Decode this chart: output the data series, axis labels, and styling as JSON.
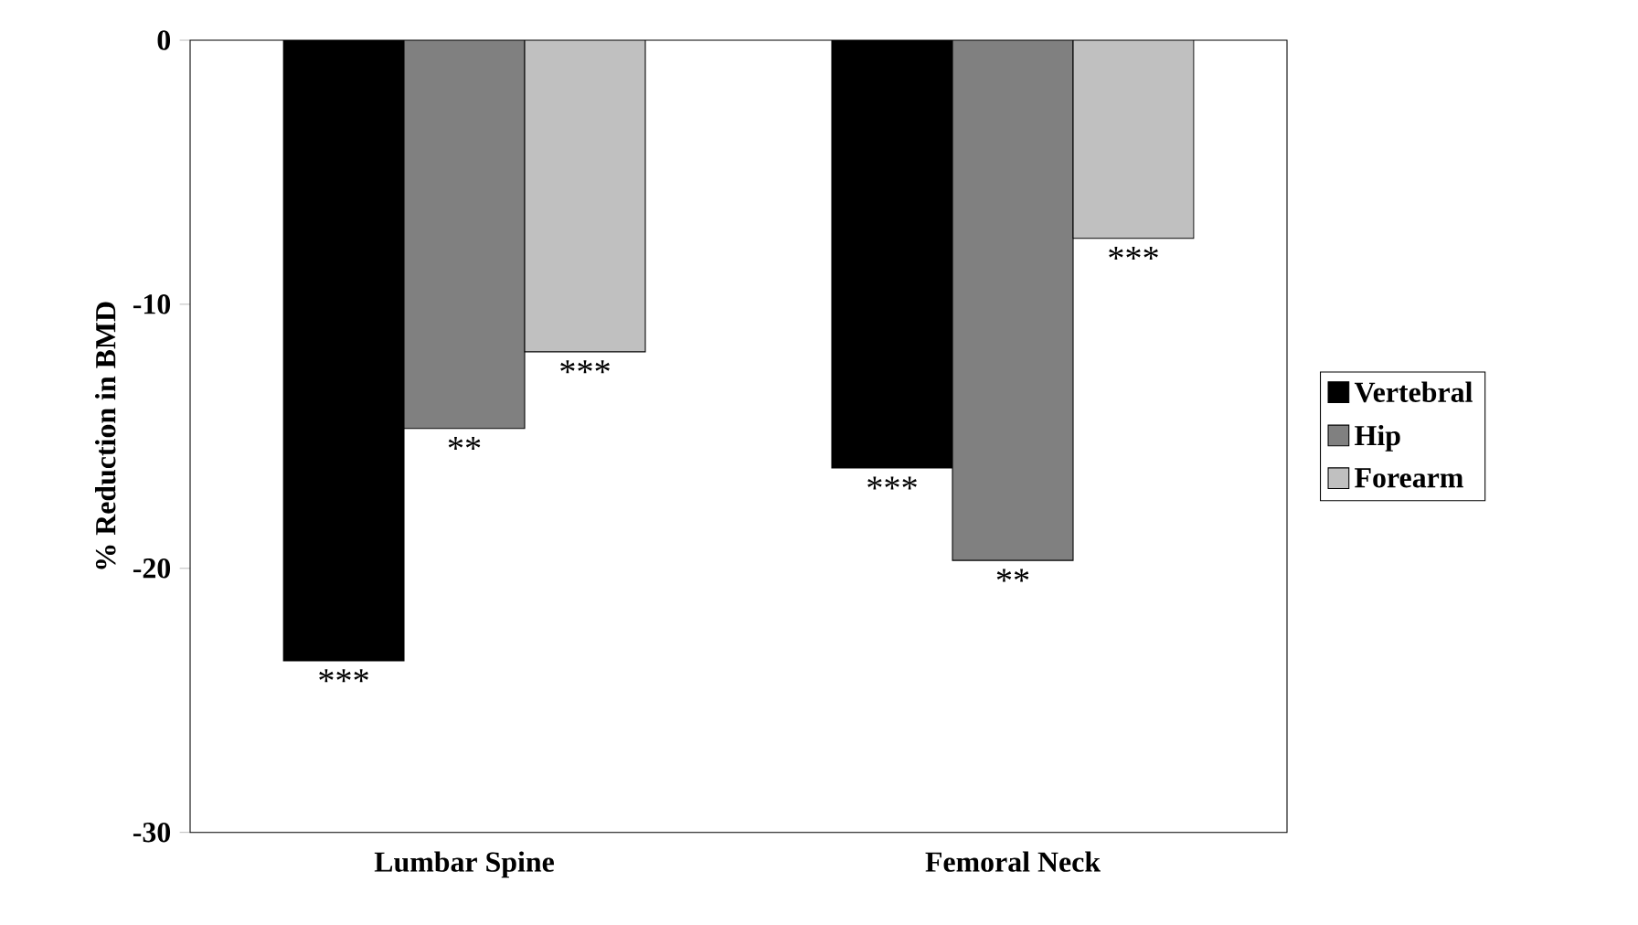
{
  "chart_data": {
    "type": "bar",
    "ylabel": "% Reduction in BMD",
    "categories": [
      "Lumbar Spine",
      "Femoral Neck"
    ],
    "series": [
      {
        "name": "Vertebral",
        "color": "#000000",
        "values": [
          -23.5,
          -16.2
        ]
      },
      {
        "name": "Hip",
        "color": "#808080",
        "values": [
          -14.7,
          -19.7
        ]
      },
      {
        "name": "Forearm",
        "color": "#c0c0c0",
        "values": [
          -11.8,
          -7.5
        ]
      }
    ],
    "ylim": [
      -30,
      0
    ],
    "yticks": [
      -30,
      -20,
      -10,
      0
    ],
    "legend": "right",
    "grid": false,
    "annotations": [
      "***",
      "**",
      "***",
      "***",
      "**",
      "***"
    ]
  }
}
